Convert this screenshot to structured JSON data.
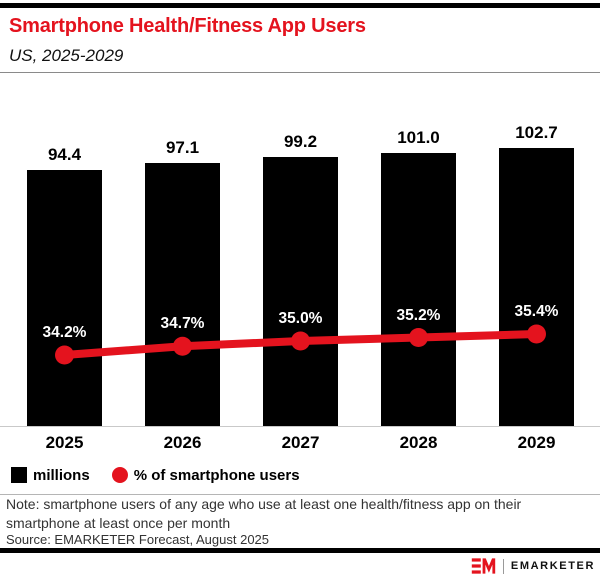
{
  "header": {
    "title": "Smartphone Health/Fitness App Users",
    "subtitle": "US, 2025-2029"
  },
  "chart_data": {
    "type": "bar",
    "subtype": "bar-with-line-overlay",
    "categories": [
      "2025",
      "2026",
      "2027",
      "2028",
      "2029"
    ],
    "series": [
      {
        "name": "millions",
        "type": "bar",
        "values": [
          94.4,
          97.1,
          99.2,
          101.0,
          102.7
        ],
        "labels": [
          "94.4",
          "97.1",
          "99.2",
          "101.0",
          "102.7"
        ],
        "color": "#000000"
      },
      {
        "name": "% of smartphone users",
        "type": "line",
        "values": [
          34.2,
          34.7,
          35.0,
          35.2,
          35.4
        ],
        "labels": [
          "34.2%",
          "34.7%",
          "35.0%",
          "35.2%",
          "35.4%"
        ],
        "color": "#e4131e"
      }
    ],
    "title": "Smartphone Health/Fitness App Users",
    "subtitle": "US, 2025-2029",
    "xlabel": "",
    "ylabel": "",
    "ylim_bars": [
      0,
      110
    ],
    "grid": false,
    "legend_position": "bottom",
    "value_labels_shown": true
  },
  "legend": {
    "items": [
      {
        "label": "millions",
        "swatch": "square",
        "color": "#000000"
      },
      {
        "label": "% of smartphone users",
        "swatch": "circle",
        "color": "#e4131e"
      }
    ]
  },
  "footnote": {
    "note_lines": [
      "Note: smartphone users of any age who use at least one health/fitness app on their",
      "smartphone at least once per month"
    ],
    "source": "Source: EMARKETER Forecast, August 2025"
  },
  "branding": {
    "logo_monogram": "EM",
    "logo_text": "EMARKETER"
  },
  "colors": {
    "accent_red": "#e4131e",
    "bar_black": "#000000",
    "note_gray": "#333333"
  }
}
